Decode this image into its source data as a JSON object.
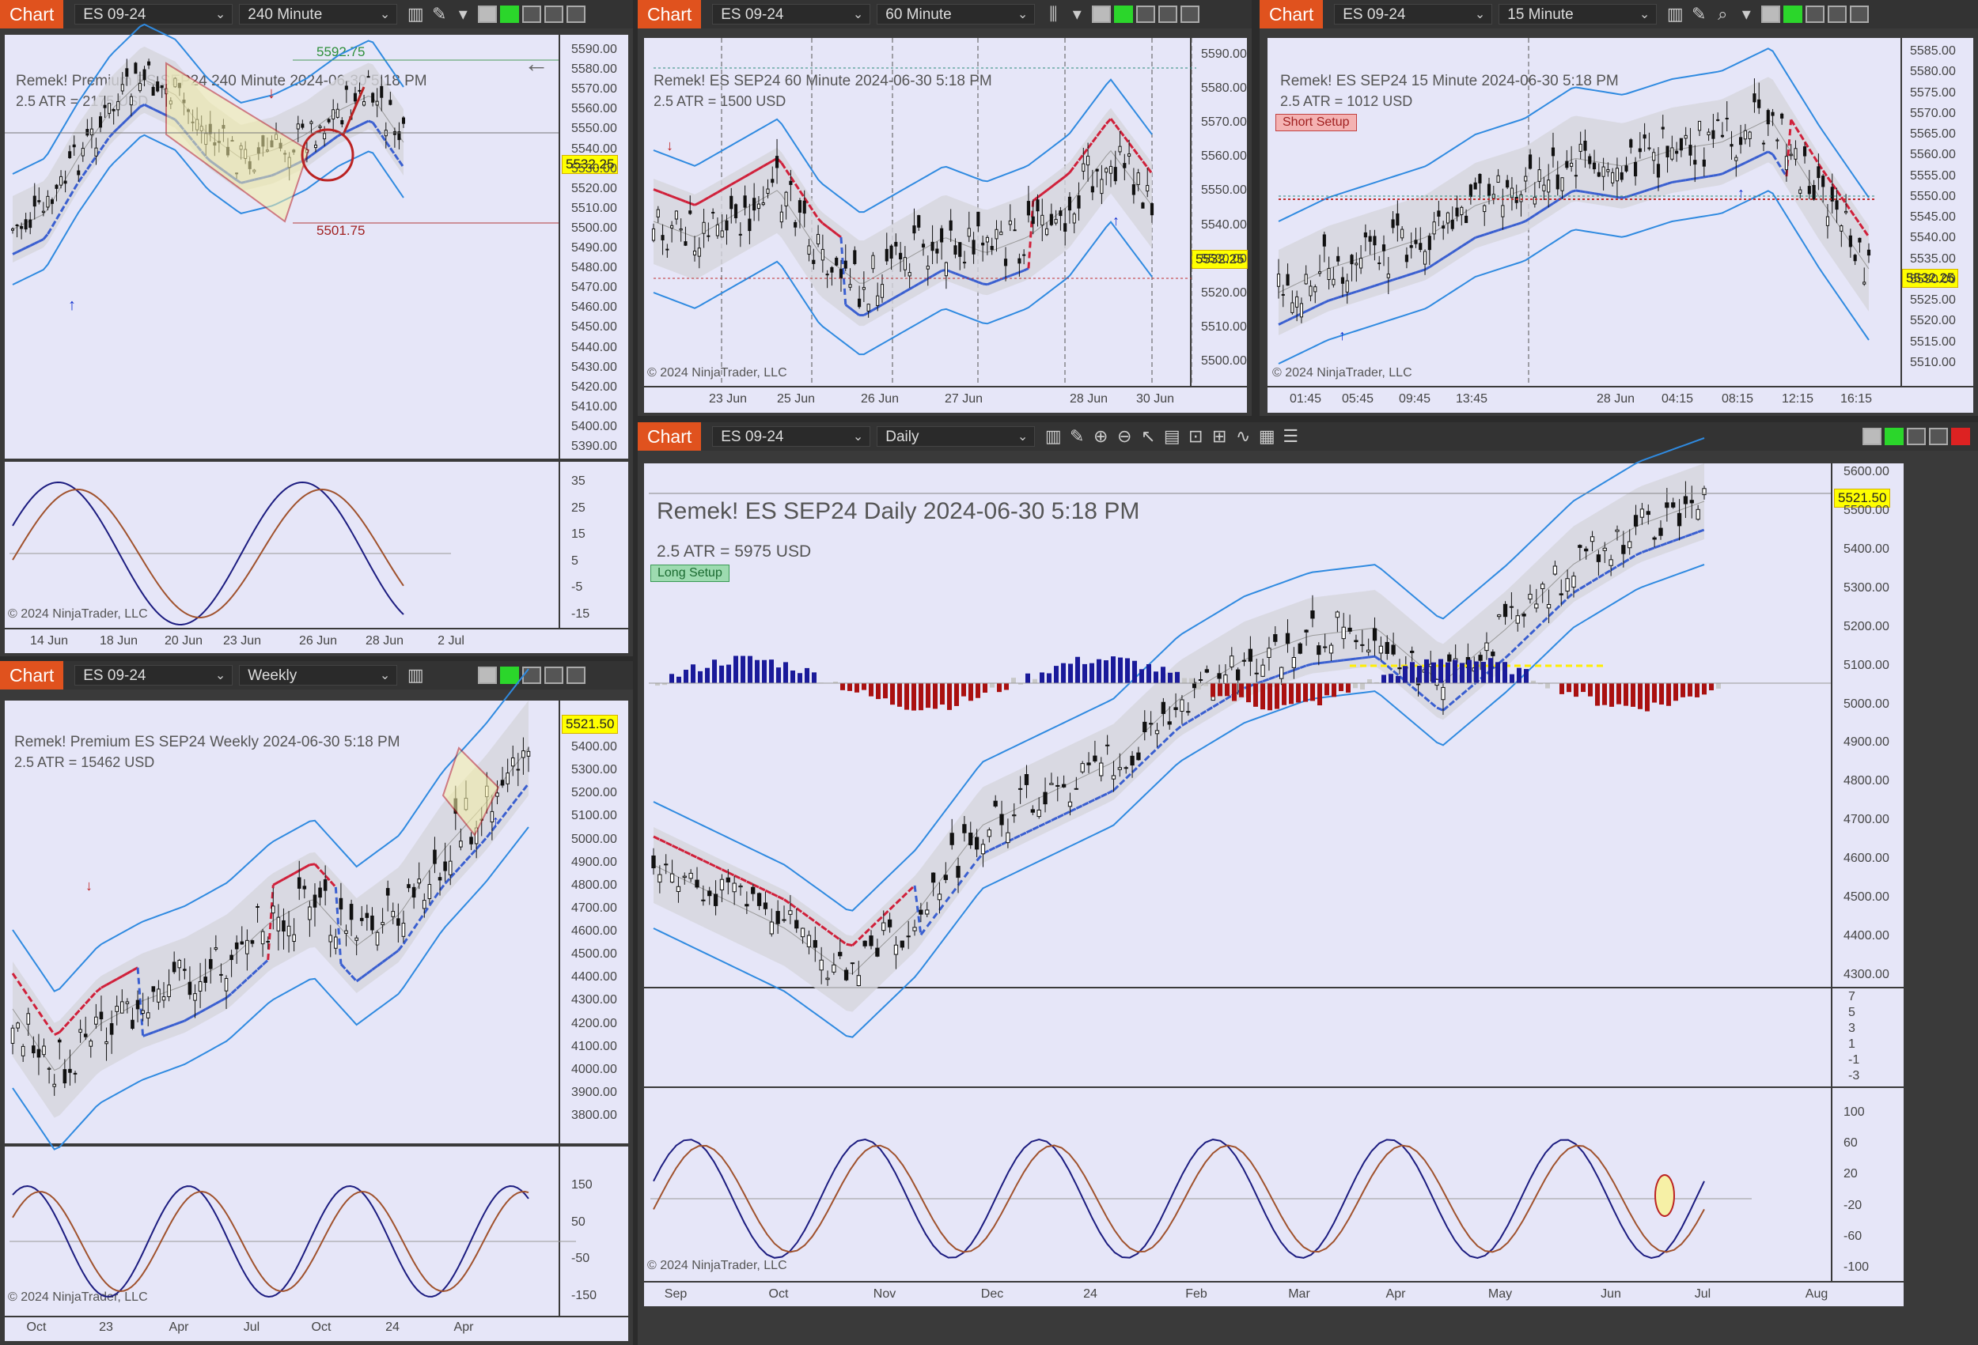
{
  "common": {
    "chart_btn": "Chart",
    "instrument": "ES 09-24",
    "copyright": "© 2024 NinjaTrader, LLC"
  },
  "chart240": {
    "timeframe": "240 Minute",
    "header": "Remek!  Premium  ES SEP24  240 Minute  2024-06-30 5:18 PM",
    "atr": "2.5 ATR = 2175 USD",
    "last_price": "5532.25",
    "annot_high": "5592.75",
    "annot_low": "5501.75",
    "price_ticks": [
      "5590.00",
      "5580.00",
      "5570.00",
      "5560.00",
      "5550.00",
      "5540.00",
      "5530.00",
      "5520.00",
      "5510.00",
      "5500.00",
      "5490.00",
      "5480.00",
      "5470.00",
      "5460.00",
      "5450.00",
      "5440.00",
      "5430.00",
      "5420.00",
      "5410.00",
      "5400.00",
      "5390.00"
    ],
    "osc_ticks": [
      "35",
      "25",
      "15",
      "5",
      "-5",
      "-15"
    ],
    "x_ticks": [
      "14 Jun",
      "18 Jun",
      "20 Jun",
      "23 Jun",
      "26 Jun",
      "28 Jun",
      "2 Jul"
    ]
  },
  "chart60": {
    "timeframe": "60 Minute",
    "header": "Remek!  ES SEP24  60 Minute  2024-06-30 5:18 PM",
    "atr": "2.5 ATR = 1500 USD",
    "last_price": "5532.25",
    "price_ticks": [
      "5590.00",
      "5580.00",
      "5570.00",
      "5560.00",
      "5550.00",
      "5540.00",
      "5530.00",
      "5520.00",
      "5510.00",
      "5500.00"
    ],
    "x_ticks": [
      "23 Jun",
      "25 Jun",
      "26 Jun",
      "27 Jun",
      "28 Jun",
      "30 Jun"
    ]
  },
  "chart15": {
    "timeframe": "15 Minute",
    "header": "Remek!  ES SEP24  15 Minute  2024-06-30 5:18 PM",
    "atr": "2.5 ATR = 1012 USD",
    "setup": "Short Setup",
    "last_price": "5532.25",
    "price_ticks": [
      "5585.00",
      "5580.00",
      "5575.00",
      "5570.00",
      "5565.00",
      "5560.00",
      "5555.00",
      "5550.00",
      "5545.00",
      "5540.00",
      "5535.00",
      "5530.00",
      "5525.00",
      "5520.00",
      "5515.00",
      "5510.00"
    ],
    "x_ticks": [
      "01:45",
      "05:45",
      "09:45",
      "13:45",
      "28 Jun",
      "04:15",
      "08:15",
      "12:15",
      "16:15"
    ]
  },
  "chartWeekly": {
    "timeframe": "Weekly",
    "header": "Remek!  Premium  ES SEP24  Weekly  2024-06-30 5:18 PM",
    "atr": "2.5 ATR = 15462 USD",
    "last_price": "5521.50",
    "price_ticks": [
      "5400.00",
      "5300.00",
      "5200.00",
      "5100.00",
      "5000.00",
      "4900.00",
      "4800.00",
      "4700.00",
      "4600.00",
      "4500.00",
      "4400.00",
      "4300.00",
      "4200.00",
      "4100.00",
      "4000.00",
      "3900.00",
      "3800.00"
    ],
    "osc_ticks": [
      "150",
      "50",
      "-50",
      "-150"
    ],
    "x_ticks": [
      "Oct",
      "23",
      "Apr",
      "Jul",
      "Oct",
      "24",
      "Apr"
    ]
  },
  "chartDaily": {
    "timeframe": "Daily",
    "header": "Remek!  ES SEP24  Daily  2024-06-30 5:18 PM",
    "atr": "2.5 ATR = 5975 USD",
    "setup": "Long Setup",
    "last_price": "5521.50",
    "price_ticks": [
      "5600.00",
      "5500.00",
      "5400.00",
      "5300.00",
      "5200.00",
      "5100.00",
      "5000.00",
      "4900.00",
      "4800.00",
      "4700.00",
      "4600.00",
      "4500.00",
      "4400.00",
      "4300.00"
    ],
    "hist_ticks": [
      "7",
      "5",
      "3",
      "1",
      "-1",
      "-3"
    ],
    "osc_ticks": [
      "100",
      "60",
      "20",
      "-20",
      "-60",
      "-100"
    ],
    "x_ticks": [
      "Sep",
      "Oct",
      "Nov",
      "Dec",
      "24",
      "Feb",
      "Mar",
      "Apr",
      "May",
      "Jun",
      "Jul",
      "Aug"
    ]
  },
  "colors": {
    "accent": "#e0521e",
    "plot_bg": "#e6e6f8",
    "band": "#2f8ae0",
    "stop_blue": "#3a5fd0",
    "stop_red": "#d0203a",
    "pivot": "#ffee00",
    "bar": "#111111"
  }
}
